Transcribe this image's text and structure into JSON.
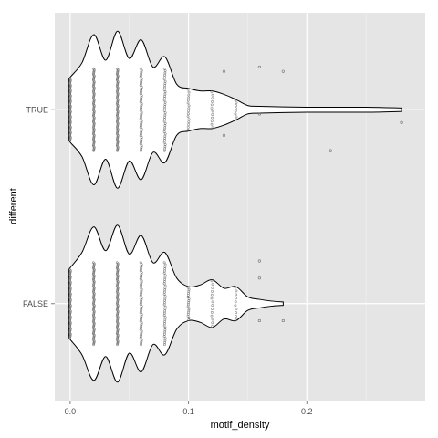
{
  "chart_data": {
    "type": "violin",
    "orientation": "horizontal",
    "xlabel": "motif_density",
    "ylabel": "different",
    "xlim": [
      -0.013,
      0.3
    ],
    "x_ticks": [
      {
        "value": 0.0,
        "label": "0.0"
      },
      {
        "value": 0.1,
        "label": "0.1"
      },
      {
        "value": 0.2,
        "label": "0.2"
      }
    ],
    "categories": [
      "TRUE",
      "FALSE"
    ],
    "grid": true,
    "background_color": "#e5e5e5",
    "grid_color": "#ffffff",
    "outline_color": "#000000",
    "point_color": "#555555",
    "groups": [
      {
        "name": "TRUE",
        "points_stacked": [
          {
            "x": 0.0,
            "n": 60
          },
          {
            "x": 0.02,
            "n": 70
          },
          {
            "x": 0.04,
            "n": 70
          },
          {
            "x": 0.06,
            "n": 50
          },
          {
            "x": 0.08,
            "n": 40
          },
          {
            "x": 0.1,
            "n": 16
          },
          {
            "x": 0.12,
            "n": 12
          },
          {
            "x": 0.14,
            "n": 8
          }
        ],
        "points_sparse": [
          {
            "x": 0.13,
            "dy": -0.45
          },
          {
            "x": 0.13,
            "dy": 0.3
          },
          {
            "x": 0.16,
            "dy": -0.5
          },
          {
            "x": 0.16,
            "dy": 0.05
          },
          {
            "x": 0.18,
            "dy": -0.45
          },
          {
            "x": 0.22,
            "dy": 0.48
          },
          {
            "x": 0.28,
            "dy": 0.15
          }
        ],
        "density": {
          "x": [
            -0.001,
            0.0,
            0.01,
            0.02,
            0.03,
            0.04,
            0.05,
            0.06,
            0.07,
            0.08,
            0.09,
            0.1,
            0.11,
            0.12,
            0.13,
            0.14,
            0.15,
            0.16,
            0.2,
            0.25,
            0.28
          ],
          "hw": [
            0.35,
            0.38,
            0.55,
            0.88,
            0.58,
            0.92,
            0.6,
            0.82,
            0.5,
            0.62,
            0.3,
            0.25,
            0.22,
            0.22,
            0.18,
            0.12,
            0.05,
            0.04,
            0.03,
            0.03,
            0.02
          ]
        }
      },
      {
        "name": "FALSE",
        "points_stacked": [
          {
            "x": 0.0,
            "n": 60
          },
          {
            "x": 0.02,
            "n": 70
          },
          {
            "x": 0.04,
            "n": 70
          },
          {
            "x": 0.06,
            "n": 50
          },
          {
            "x": 0.08,
            "n": 40
          },
          {
            "x": 0.1,
            "n": 18
          },
          {
            "x": 0.12,
            "n": 14
          },
          {
            "x": 0.14,
            "n": 10
          }
        ],
        "points_sparse": [
          {
            "x": 0.16,
            "dy": -0.5
          },
          {
            "x": 0.16,
            "dy": -0.3
          },
          {
            "x": 0.16,
            "dy": 0.2
          },
          {
            "x": 0.18,
            "dy": 0.2
          }
        ],
        "density": {
          "x": [
            -0.001,
            0.0,
            0.01,
            0.02,
            0.03,
            0.04,
            0.05,
            0.06,
            0.07,
            0.08,
            0.09,
            0.1,
            0.11,
            0.12,
            0.13,
            0.14,
            0.15,
            0.16,
            0.17,
            0.18
          ],
          "hw": [
            0.4,
            0.42,
            0.6,
            0.9,
            0.62,
            0.92,
            0.58,
            0.8,
            0.48,
            0.6,
            0.3,
            0.2,
            0.22,
            0.28,
            0.18,
            0.2,
            0.08,
            0.05,
            0.03,
            0.02
          ]
        }
      }
    ]
  }
}
